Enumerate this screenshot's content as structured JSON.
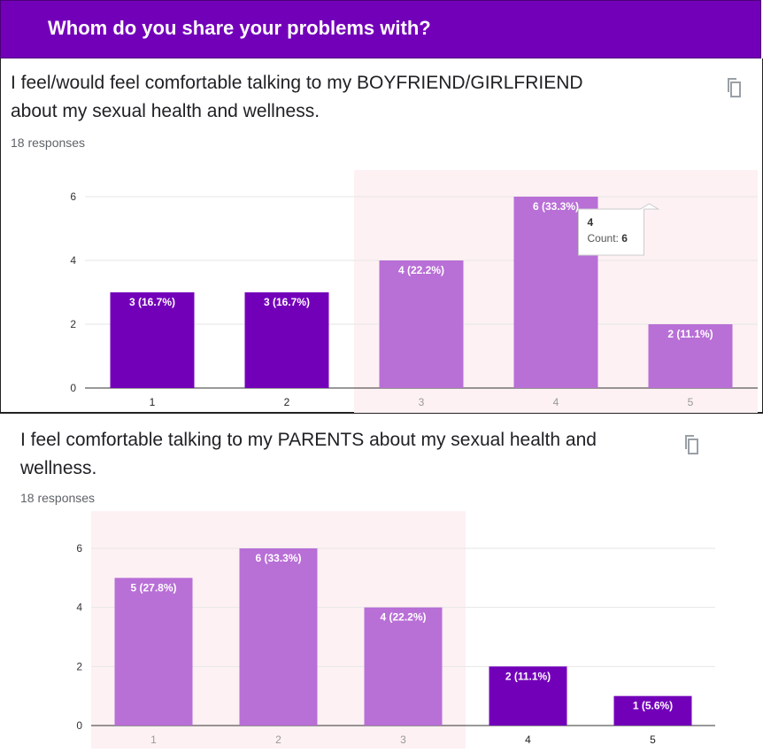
{
  "header": {
    "title": "Whom do you share your problems with?"
  },
  "colors": {
    "header_bg": "#7300b9",
    "bar_dark": "#7300b9",
    "bar_light": "#b86fd6",
    "highlight_bg": "#fdf1f3"
  },
  "questions": [
    {
      "text_line1": "I feel/would feel comfortable talking to my BOYFRIEND/GIRLFRIEND",
      "text_line2": "about my sexual health and wellness.",
      "responses": "18 responses",
      "copy_icon": "copy-icon",
      "tooltip": {
        "category": "4",
        "label": "Count: ",
        "value": "6"
      }
    },
    {
      "text_line1": "I feel comfortable talking to my PARENTS about my sexual health and",
      "text_line2": "wellness.",
      "responses": "18 responses",
      "copy_icon": "copy-icon"
    }
  ],
  "chart_data": [
    {
      "type": "bar",
      "categories": [
        "1",
        "2",
        "3",
        "4",
        "5"
      ],
      "values": [
        3,
        3,
        4,
        6,
        2
      ],
      "labels": [
        "3 (16.7%)",
        "3 (16.7%)",
        "4 (22.2%)",
        "6 (33.3%)",
        "2 (11.1%)"
      ],
      "highlighted": [
        false,
        false,
        true,
        true,
        true
      ],
      "yticks": [
        "0",
        "2",
        "4",
        "6"
      ],
      "ylim": [
        0,
        6
      ]
    },
    {
      "type": "bar",
      "categories": [
        "1",
        "2",
        "3",
        "4",
        "5"
      ],
      "values": [
        5,
        6,
        4,
        2,
        1
      ],
      "labels": [
        "5 (27.8%)",
        "6 (33.3%)",
        "4 (22.2%)",
        "2 (11.1%)",
        "1 (5.6%)"
      ],
      "highlighted": [
        true,
        true,
        true,
        false,
        false
      ],
      "yticks": [
        "0",
        "2",
        "4",
        "6"
      ],
      "ylim": [
        0,
        6
      ]
    }
  ]
}
